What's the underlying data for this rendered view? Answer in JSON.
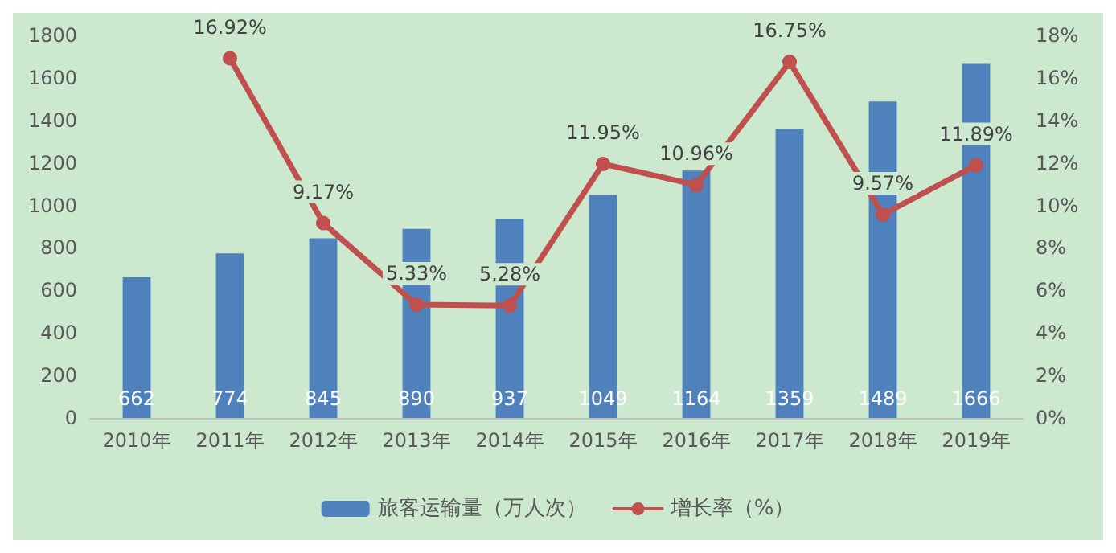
{
  "chart_data": {
    "type": "bar",
    "categories": [
      "2010年",
      "2011年",
      "2012年",
      "2013年",
      "2014年",
      "2015年",
      "2016年",
      "2017年",
      "2018年",
      "2019年"
    ],
    "series": [
      {
        "name": "旅客运输量（万人次）",
        "color": "#4f81bd",
        "values": [
          662,
          774,
          845,
          890,
          937,
          1049,
          1164,
          1359,
          1489,
          1666
        ],
        "value_labels": [
          "662",
          "774",
          "845",
          "890",
          "937",
          "1049",
          "1164",
          "1359",
          "1489",
          "1666"
        ]
      },
      {
        "name": "增长率（%）",
        "type": "line",
        "axis": "y2",
        "color": "#c0504d",
        "values": [
          null,
          16.92,
          9.17,
          5.33,
          5.28,
          11.95,
          10.96,
          16.75,
          9.57,
          11.89
        ],
        "value_labels": [
          null,
          "16.92%",
          "9.17%",
          "5.33%",
          "5.28%",
          "11.95%",
          "10.96%",
          "16.75%",
          "9.57%",
          "11.89%"
        ]
      }
    ],
    "ylim": [
      0,
      1800
    ],
    "yticks": [
      0,
      200,
      400,
      600,
      800,
      1000,
      1200,
      1400,
      1600,
      1800
    ],
    "y2lim": [
      0,
      18
    ],
    "y2ticks": [
      {
        "value": 0,
        "label": "0%"
      },
      {
        "value": 2,
        "label": "2%"
      },
      {
        "value": 4,
        "label": "4%"
      },
      {
        "value": 6,
        "label": "6%"
      },
      {
        "value": 8,
        "label": "8%"
      },
      {
        "value": 10,
        "label": "10%"
      },
      {
        "value": 12,
        "label": "12%"
      },
      {
        "value": 14,
        "label": "14%"
      },
      {
        "value": 16,
        "label": "16%"
      },
      {
        "value": 18,
        "label": "18%"
      }
    ],
    "grid": false,
    "legend": "bottom",
    "marker": "circle",
    "line_style": "solid"
  }
}
